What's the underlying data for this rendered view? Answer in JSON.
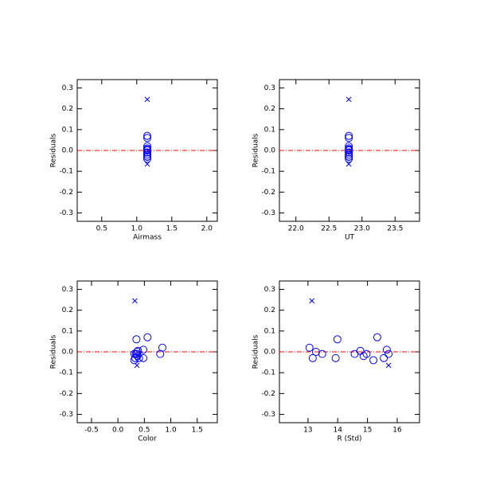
{
  "chart_data": [
    {
      "type": "scatter",
      "xlabel": "Airmass",
      "ylabel": "Residuals",
      "xlim": [
        0.15,
        2.15
      ],
      "ylim": [
        -0.34,
        0.34
      ],
      "xticks": [
        0.5,
        {
          "value": 1,
          "label": "1.0"
        },
        1.5,
        {
          "value": 2,
          "label": "2.0"
        }
      ],
      "yticks": [
        0.3,
        0.2,
        0.1,
        {
          "value": 0,
          "label": "0.0"
        },
        -0.1,
        -0.2,
        -0.3
      ],
      "reference_line": {
        "y": 0,
        "color": "#ff0000"
      },
      "series": [
        {
          "marker": "circle",
          "color": "#0000ff",
          "x": [
            1.15,
            1.15,
            1.15,
            1.15,
            1.15,
            1.15,
            1.15,
            1.15,
            1.15,
            1.15,
            1.15,
            1.15,
            1.15,
            1.15,
            1.15
          ],
          "y": [
            0.02,
            -0.03,
            0,
            -0.01,
            -0.03,
            0.06,
            -0.01,
            0.005,
            -0.02,
            -0.01,
            -0.04,
            0.07,
            -0.03,
            0.01,
            -0.01
          ]
        },
        {
          "marker": "cross",
          "color": "#0000ff",
          "x": [
            1.15,
            1.15
          ],
          "y": [
            0.245,
            -0.065
          ]
        }
      ]
    },
    {
      "type": "scatter",
      "xlabel": "UT",
      "ylabel": "Residuals",
      "xlim": [
        21.75,
        23.87
      ],
      "ylim": [
        -0.34,
        0.34
      ],
      "xticks": [
        {
          "value": 22,
          "label": "22.0"
        },
        22.5,
        {
          "value": 23,
          "label": "23.0"
        },
        23.5
      ],
      "yticks": [
        0.3,
        0.2,
        0.1,
        {
          "value": 0,
          "label": "0.0"
        },
        -0.1,
        -0.2,
        -0.3
      ],
      "reference_line": {
        "y": 0,
        "color": "#ff0000"
      },
      "series": [
        {
          "marker": "circle",
          "color": "#0000ff",
          "x": [
            22.8,
            22.8,
            22.8,
            22.8,
            22.8,
            22.8,
            22.8,
            22.8,
            22.8,
            22.8,
            22.8,
            22.8,
            22.8,
            22.8,
            22.8
          ],
          "y": [
            0.02,
            -0.03,
            0,
            -0.01,
            -0.03,
            0.06,
            -0.01,
            0.005,
            -0.02,
            -0.01,
            -0.04,
            0.07,
            -0.03,
            0.01,
            -0.01
          ]
        },
        {
          "marker": "cross",
          "color": "#0000ff",
          "x": [
            22.8,
            22.8
          ],
          "y": [
            0.245,
            -0.065
          ]
        }
      ]
    },
    {
      "type": "scatter",
      "xlabel": "Color",
      "ylabel": "Residuals",
      "xlim": [
        -0.77,
        1.88
      ],
      "ylim": [
        -0.34,
        0.34
      ],
      "xticks": [
        -0.5,
        {
          "value": 0,
          "label": "0.0"
        },
        0.5,
        {
          "value": 1,
          "label": "1.0"
        },
        1.5
      ],
      "yticks": [
        0.3,
        0.2,
        0.1,
        {
          "value": 0,
          "label": "0.0"
        },
        -0.1,
        -0.2,
        -0.3
      ],
      "reference_line": {
        "y": 0,
        "color": "#ff0000"
      },
      "series": [
        {
          "marker": "circle",
          "color": "#0000ff",
          "x": [
            0.84,
            0.48,
            0.36,
            0.8,
            0.33,
            0.35,
            0.31,
            0.38,
            0.37,
            0.34,
            0.31,
            0.56,
            0.4,
            0.48,
            0.36
          ],
          "y": [
            0.02,
            -0.03,
            0,
            -0.01,
            -0.03,
            0.06,
            -0.01,
            0.005,
            -0.02,
            -0.01,
            -0.04,
            0.07,
            -0.03,
            0.01,
            -0.01
          ]
        },
        {
          "marker": "cross",
          "color": "#0000ff",
          "x": [
            0.32,
            0.36
          ],
          "y": [
            0.245,
            -0.065
          ]
        }
      ]
    },
    {
      "type": "scatter",
      "xlabel": "R (Std)",
      "ylabel": "Residuals",
      "xlim": [
        12.04,
        16.75
      ],
      "ylim": [
        -0.34,
        0.34
      ],
      "xticks": [
        13,
        14,
        15,
        16
      ],
      "yticks": [
        0.3,
        0.2,
        0.1,
        {
          "value": 0,
          "label": "0.0"
        },
        -0.1,
        -0.2,
        -0.3
      ],
      "reference_line": {
        "y": 0,
        "color": "#ff0000"
      },
      "series": [
        {
          "marker": "circle",
          "color": "#0000ff",
          "x": [
            13.05,
            13.16,
            13.27,
            13.48,
            13.93,
            13.99,
            14.57,
            14.76,
            14.87,
            14.97,
            15.2,
            15.33,
            15.55,
            15.65,
            15.71
          ],
          "y": [
            0.02,
            -0.03,
            0,
            -0.01,
            -0.03,
            0.06,
            -0.01,
            0.005,
            -0.02,
            -0.01,
            -0.04,
            0.07,
            -0.03,
            0.01,
            -0.01
          ]
        },
        {
          "marker": "cross",
          "color": "#0000ff",
          "x": [
            13.13,
            15.71
          ],
          "y": [
            0.245,
            -0.065
          ]
        }
      ]
    }
  ]
}
